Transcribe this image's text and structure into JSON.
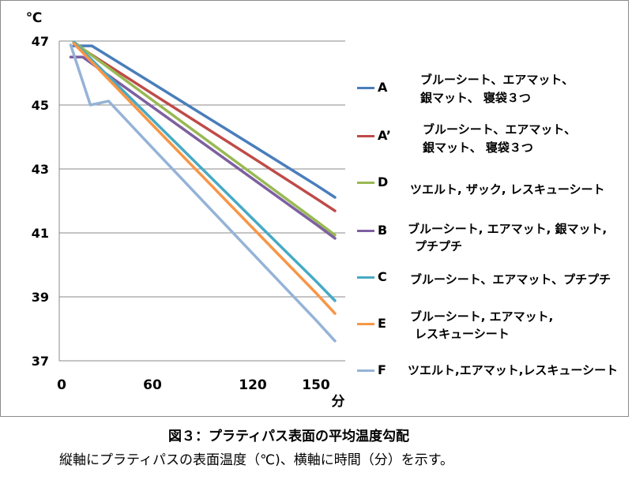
{
  "caption": {
    "title": "図３：プラティパス表面の平均温度勾配",
    "note": "縦軸にプラティパスの表面温度（℃)、横軸に時間（分）を示す。"
  },
  "chart_data": {
    "type": "line",
    "y_unit_label": "℃",
    "x_unit_label": "分",
    "ylim": [
      37,
      47
    ],
    "yticks": [
      47,
      45,
      43,
      41,
      39,
      37
    ],
    "xticks": [
      0,
      60,
      120,
      150
    ],
    "grid": true,
    "legend_position": "right",
    "series": [
      {
        "name": "A",
        "color": "#4A7EBB",
        "legend_lines": [
          "ブルーシート、エアマット、",
          "銀マット、 寝袋３つ"
        ],
        "x": [
          8,
          20,
          60,
          120,
          150,
          159
        ],
        "y": [
          46.85,
          46.85,
          45.68,
          43.73,
          42.5,
          42.11
        ]
      },
      {
        "name": "A’",
        "color": "#BE4B48",
        "legend_lines": [
          "ブルーシート、エアマット、",
          "銀マット、 寝袋３つ"
        ],
        "x": [
          8,
          60,
          120,
          150,
          159
        ],
        "y": [
          46.93,
          45.35,
          43.35,
          42.08,
          41.69
        ]
      },
      {
        "name": "D",
        "color": "#98B954",
        "legend_lines": [
          "ツエルト, ザック, レスキューシート"
        ],
        "x": [
          8,
          60,
          120,
          150,
          159
        ],
        "y": [
          46.97,
          45.15,
          42.84,
          41.38,
          40.93
        ]
      },
      {
        "name": "B",
        "color": "#7D60A0",
        "legend_lines": [
          "ブルーシート, エアマット, 銀マット,",
          "プチプチ"
        ],
        "x": [
          6,
          14,
          60,
          120,
          150,
          159
        ],
        "y": [
          46.5,
          46.5,
          44.94,
          42.69,
          41.27,
          40.83
        ]
      },
      {
        "name": "C",
        "color": "#46AAC5",
        "legend_lines": [
          "ブルーシート、エアマット、プチプチ"
        ],
        "x": [
          8,
          60,
          120,
          150,
          159
        ],
        "y": [
          46.97,
          44.54,
          41.44,
          39.49,
          38.88
        ]
      },
      {
        "name": "E",
        "color": "#F79646",
        "legend_lines": [
          "ブルーシート, エアマット,",
          "レスキューシート"
        ],
        "x": [
          8,
          60,
          120,
          150,
          159
        ],
        "y": [
          46.93,
          44.38,
          41.15,
          39.12,
          38.48
        ]
      },
      {
        "name": "F",
        "color": "#95B3D7",
        "legend_lines": [
          "ツエルト,エアマット,レスキューシート"
        ],
        "x": [
          6,
          19,
          31,
          60,
          120,
          150,
          159
        ],
        "y": [
          46.88,
          45.0,
          45.12,
          43.66,
          40.35,
          38.27,
          37.62
        ]
      }
    ]
  }
}
